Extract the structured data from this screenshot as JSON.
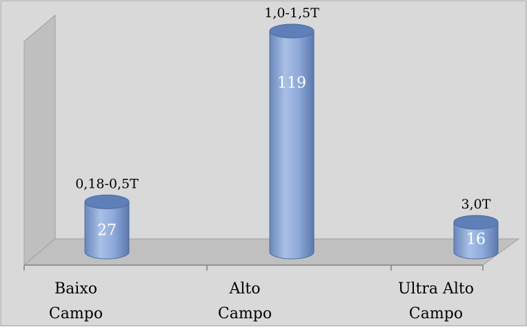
{
  "chart_data": {
    "type": "bar",
    "style": "3d-cylinder",
    "categories": [
      [
        "Baixo",
        "Campo"
      ],
      [
        "Alto",
        "Campo"
      ],
      [
        "Ultra Alto",
        "Campo"
      ]
    ],
    "values": [
      27,
      119,
      16
    ],
    "annotations": [
      "0,18-0,5T",
      "1,0-1,5T",
      "3,0T"
    ],
    "title": "",
    "xlabel": "",
    "ylabel": "",
    "ylim": [
      0,
      119
    ],
    "grid": false,
    "legend": false,
    "colors": {
      "background": "#d9d9d9",
      "wall": "#bfbfbf",
      "floor": "#c0c0c0",
      "bar": "#7f9ccc",
      "bar_top": "#5e7fb8",
      "axis": "#808080"
    }
  }
}
